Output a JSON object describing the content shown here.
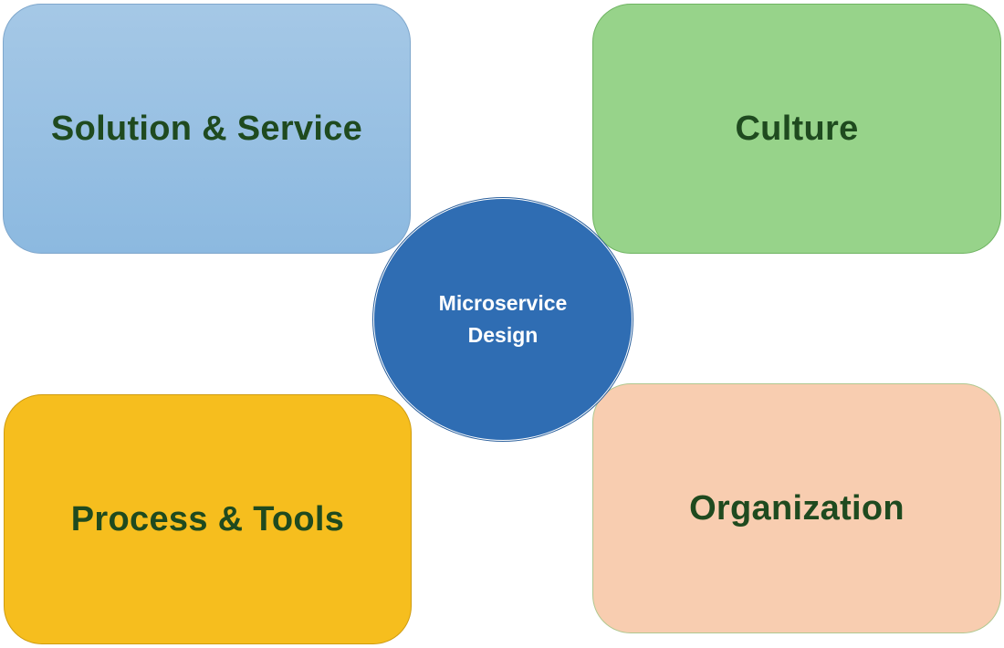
{
  "diagram": {
    "center": {
      "line1": "Microservice",
      "line2": "Design"
    },
    "boxes": {
      "top_left": "Solution & Service",
      "top_right": "Culture",
      "bottom_left": "Process & Tools",
      "bottom_right": "Organization"
    },
    "colors": {
      "top_left": "#9fc3e4",
      "top_right": "#97d38a",
      "bottom_left": "#f6be1e",
      "bottom_right": "#f8cdb0",
      "center": "#2f6db3",
      "label_text": "#1f4a1f"
    }
  }
}
